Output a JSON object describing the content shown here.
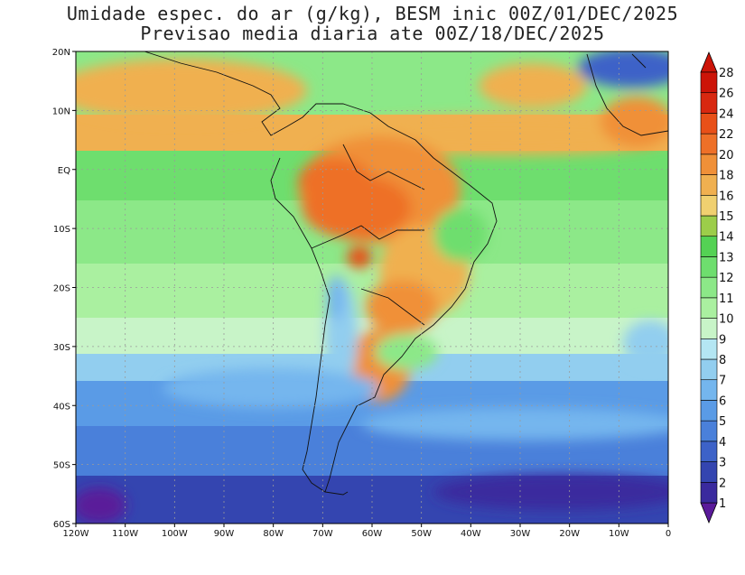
{
  "header": {
    "title": "Umidade espec. do ar (g/kg), BESM inic 00Z/01/DEC/2025",
    "subtitle": "Previsao media diaria ate 00Z/18/DEC/2025"
  },
  "map": {
    "lon_range": [
      -120,
      0
    ],
    "lat_range": [
      -60,
      20
    ],
    "lat_labels": [
      "20N",
      "10N",
      "EQ",
      "10S",
      "20S",
      "30S",
      "40S",
      "50S",
      "60S"
    ],
    "lon_labels": [
      "120W",
      "110W",
      "100W",
      "90W",
      "80W",
      "70W",
      "60W",
      "50W",
      "40W",
      "30W",
      "20W",
      "10W",
      "0"
    ],
    "grid": true
  },
  "colorbar": {
    "levels": [
      "1",
      "2",
      "3",
      "4",
      "5",
      "6",
      "7",
      "8",
      "9",
      "10",
      "11",
      "12",
      "13",
      "14",
      "15",
      "16",
      "18",
      "20",
      "22",
      "24",
      "26",
      "28"
    ],
    "colors": [
      "#5a1a9a",
      "#3a2a9e",
      "#3445b0",
      "#3d62c8",
      "#4a80da",
      "#5a9be6",
      "#74b6ee",
      "#92ceef",
      "#b4e6f3",
      "#c8f4c8",
      "#aaf0a0",
      "#8ce888",
      "#6ede6e",
      "#54d254",
      "#9ccd4a",
      "#f0d070",
      "#f0b050",
      "#f09038",
      "#ee7028",
      "#e85018",
      "#d82810",
      "#cc1408"
    ]
  }
}
